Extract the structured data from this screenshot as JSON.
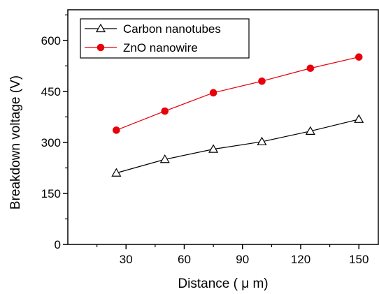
{
  "chart_data": {
    "type": "line",
    "xlabel": "Distance ( μ m)",
    "ylabel": "Breakdown voltage (V)",
    "xlim": [
      0,
      160
    ],
    "ylim": [
      0,
      690
    ],
    "xticks": [
      30,
      60,
      90,
      120,
      150
    ],
    "yticks": [
      0,
      150,
      300,
      450,
      600
    ],
    "grid": false,
    "legend_position": "top-left",
    "series": [
      {
        "name": "Carbon nanotubes",
        "x": [
          25,
          50,
          75,
          100,
          125,
          150
        ],
        "y": [
          210,
          250,
          280,
          302,
          333,
          368
        ],
        "color": "#000000",
        "marker": "open-triangle"
      },
      {
        "name": "ZnO nanowire",
        "x": [
          25,
          50,
          75,
          100,
          125,
          150
        ],
        "y": [
          336,
          392,
          446,
          480,
          518,
          551
        ],
        "color": "#e8000b",
        "marker": "filled-circle"
      }
    ]
  }
}
